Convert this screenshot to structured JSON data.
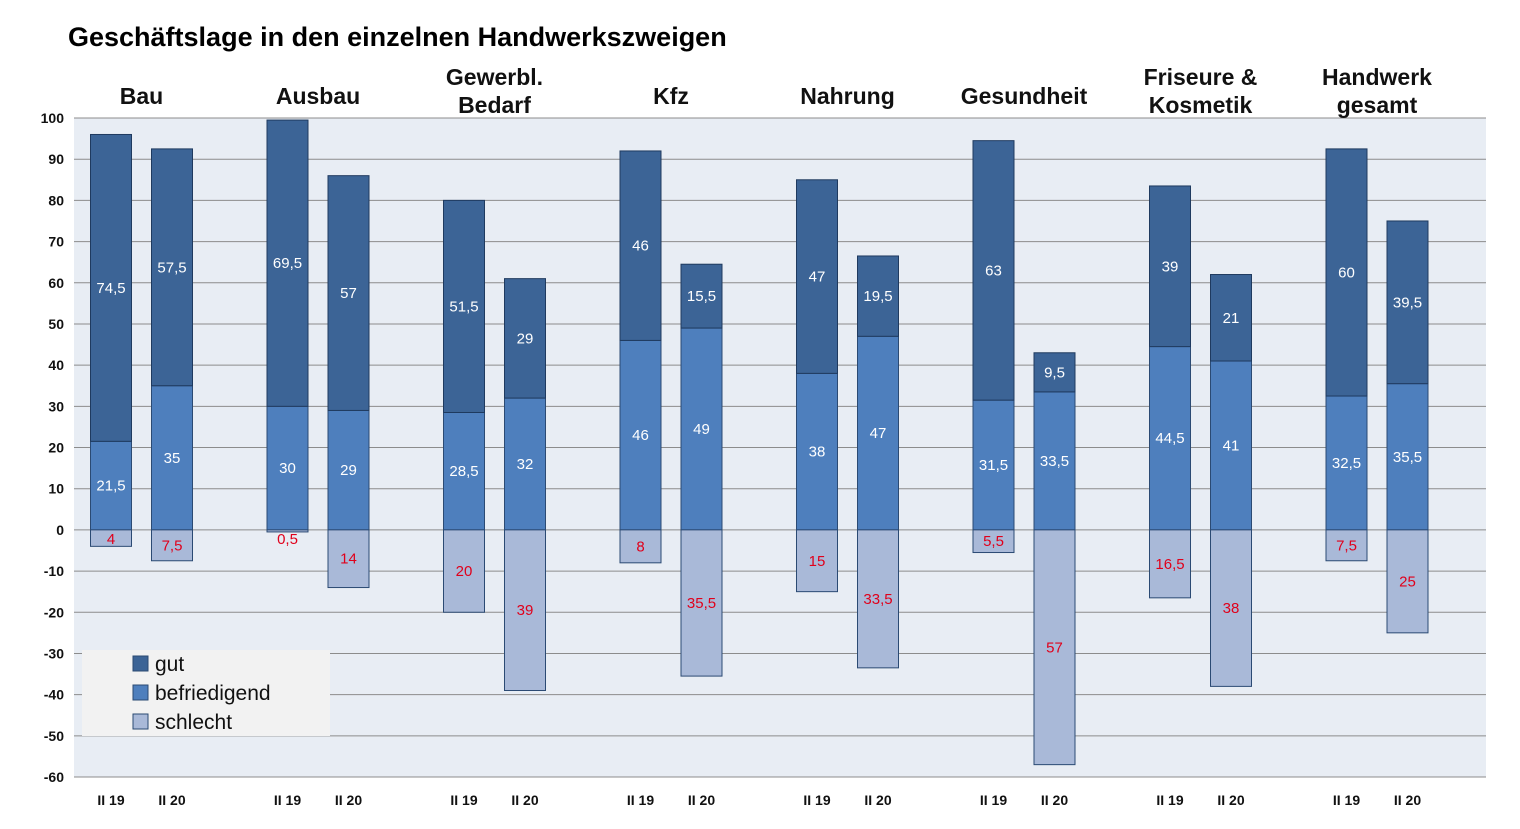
{
  "chart_data": {
    "type": "bar",
    "stacked": true,
    "title": "Geschäftslage in den einzelnen Handwerkszweigen",
    "groups": [
      {
        "label_lines": [
          "Bau"
        ]
      },
      {
        "label_lines": [
          "Ausbau"
        ]
      },
      {
        "label_lines": [
          "Gewerbl.",
          "Bedarf"
        ]
      },
      {
        "label_lines": [
          "Kfz"
        ]
      },
      {
        "label_lines": [
          "Nahrung"
        ]
      },
      {
        "label_lines": [
          "Gesundheit"
        ]
      },
      {
        "label_lines": [
          "Friseure &",
          "Kosmetik"
        ]
      },
      {
        "label_lines": [
          "Handwerk",
          "gesamt"
        ]
      }
    ],
    "periods": [
      "II 19",
      "II 20"
    ],
    "series": [
      {
        "name": "gut",
        "color": "#3c6496",
        "values": [
          74.5,
          57.5,
          69.5,
          57,
          51.5,
          29,
          46,
          15.5,
          47,
          19.5,
          63,
          9.5,
          39,
          21,
          60,
          39.5
        ],
        "labels": [
          "74,5",
          "57,5",
          "69,5",
          "57",
          "51,5",
          "29",
          "46",
          "15,5",
          "47",
          "19,5",
          "63",
          "9,5",
          "39",
          "21",
          "60",
          "39,5"
        ]
      },
      {
        "name": "befriedigend",
        "color": "#4e7fbd",
        "values": [
          21.5,
          35,
          30,
          29,
          28.5,
          32,
          46,
          49,
          38,
          47,
          31.5,
          33.5,
          44.5,
          41,
          32.5,
          35.5
        ],
        "labels": [
          "21,5",
          "35",
          "30",
          "29",
          "28,5",
          "32",
          "46",
          "49",
          "38",
          "47",
          "31,5",
          "33,5",
          "44,5",
          "41",
          "32,5",
          "35,5"
        ]
      },
      {
        "name": "schlecht",
        "color": "#a9b9d8",
        "values": [
          4,
          7.5,
          0.5,
          14,
          20,
          39,
          8,
          35.5,
          15,
          33.5,
          5.5,
          57,
          16.5,
          38,
          7.5,
          25
        ],
        "labels": [
          "4",
          "7,5",
          "0,5",
          "14",
          "20",
          "39",
          "8",
          "35,5",
          "15",
          "33,5",
          "5,5",
          "57",
          "16,5",
          "38",
          "7,5",
          "25"
        ]
      }
    ],
    "yticks": [
      "100",
      "90",
      "80",
      "70",
      "60",
      "50",
      "40",
      "30",
      "20",
      "10",
      "0",
      "-10",
      "-20",
      "-30",
      "-40",
      "-50",
      "-60"
    ],
    "ylim": [
      -60,
      100
    ],
    "grid": true,
    "legend_position": "bottom-left",
    "label_colors": {
      "positive": "#ffffff",
      "negative": "#e0001b"
    }
  }
}
